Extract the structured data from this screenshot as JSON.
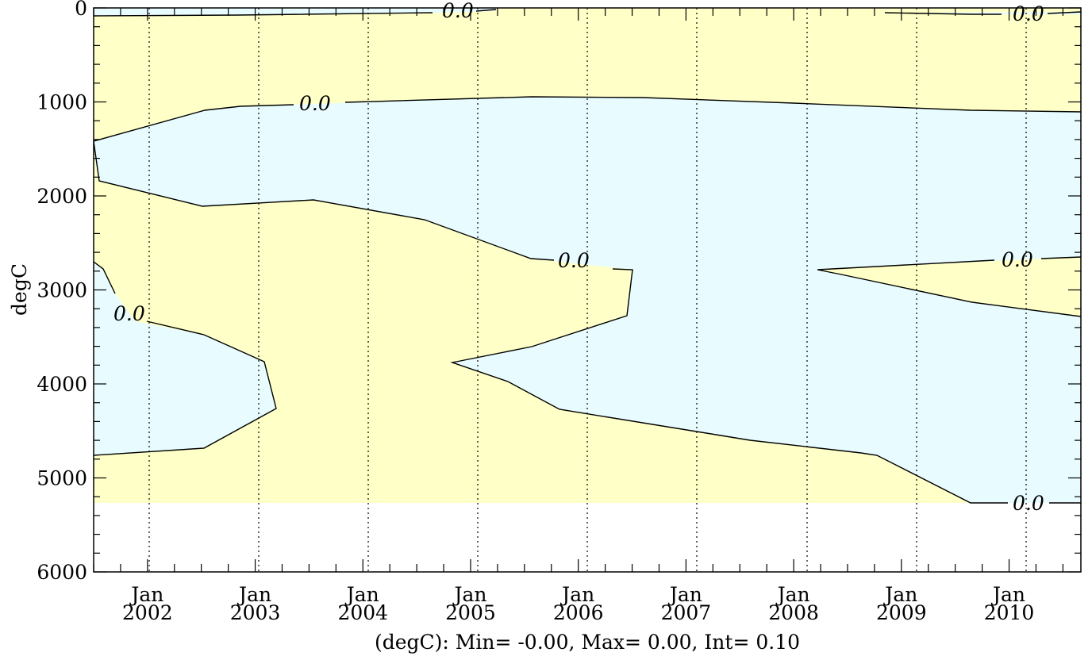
{
  "chart_data": {
    "type": "heatmap",
    "subtype": "contour",
    "title": "",
    "ylabel": "degC",
    "xlabel": "(degC): Min= -0.00, Max= 0.00, Int= 0.10",
    "ylim": [
      6000,
      0
    ],
    "xlim": [
      "2001-07",
      "2010-09"
    ],
    "y_ticks": [
      "0",
      "1000",
      "2000",
      "3000",
      "4000",
      "5000",
      "6000"
    ],
    "x_ticks": [
      {
        "month": "Jan",
        "year": "2002"
      },
      {
        "month": "Jan",
        "year": "2003"
      },
      {
        "month": "Jan",
        "year": "2004"
      },
      {
        "month": "Jan",
        "year": "2005"
      },
      {
        "month": "Jan",
        "year": "2006"
      },
      {
        "month": "Jan",
        "year": "2007"
      },
      {
        "month": "Jan",
        "year": "2008"
      },
      {
        "month": "Jan",
        "year": "2009"
      },
      {
        "month": "Jan",
        "year": "2010"
      }
    ],
    "contour_level": "0.0",
    "data_max_depth": 5270,
    "grid": "dotted vertical lines at each January",
    "colors": {
      "positive_fill": "#FFFFC8",
      "negative_fill": "#E8FCFF",
      "contour": "#000000",
      "background": "#FFFFFF"
    }
  }
}
